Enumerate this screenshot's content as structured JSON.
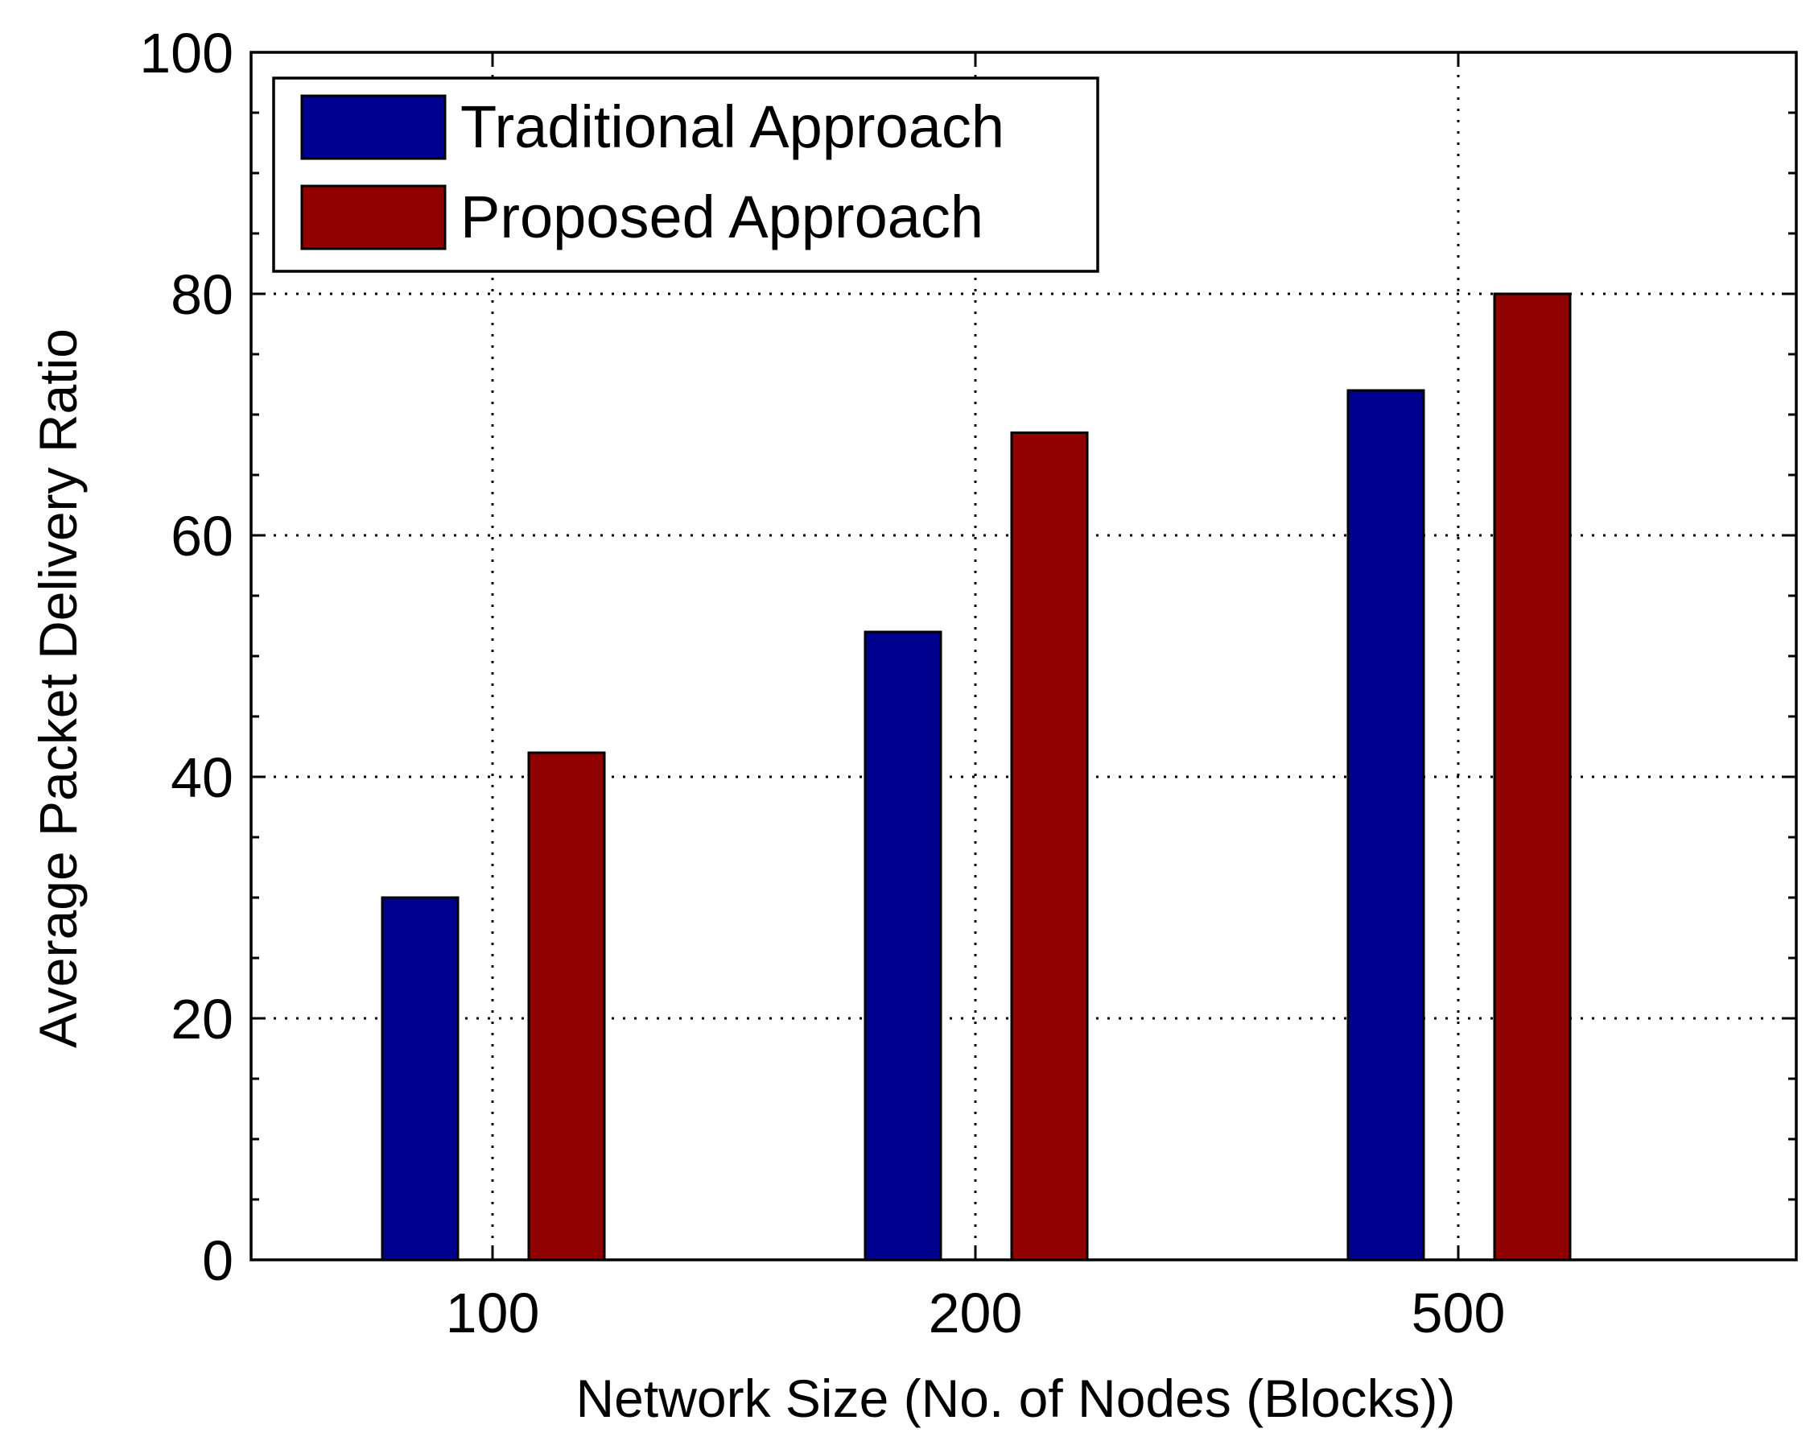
{
  "chart_data": {
    "type": "bar",
    "title": "",
    "xlabel": "Network Size (No. of Nodes (Blocks))",
    "ylabel": "Average Packet Delivery Ratio",
    "categories": [
      "100",
      "200",
      "500"
    ],
    "series": [
      {
        "name": "Traditional Approach",
        "color": "#00008f",
        "values": [
          30,
          52,
          72
        ]
      },
      {
        "name": "Proposed Approach",
        "color": "#8f0000",
        "values": [
          42,
          68.5,
          80
        ]
      }
    ],
    "ylim": [
      0,
      100
    ],
    "yticks": [
      "0",
      "20",
      "40",
      "60",
      "80",
      "100"
    ],
    "grid": true,
    "legend_position": "top-left"
  }
}
